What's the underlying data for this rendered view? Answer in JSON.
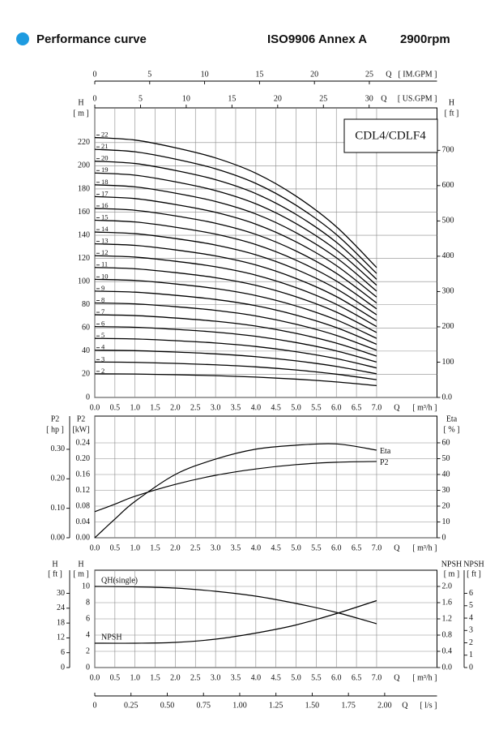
{
  "header": {
    "title": "Performance curve",
    "standard": "ISO9906 Annex A",
    "speed": "2900rpm"
  },
  "chart_data": [
    {
      "type": "line",
      "model": "CDL4/CDLF4",
      "color": "#000000",
      "grid": true,
      "x_label": "Q",
      "x_unit": "[ m³/h ]",
      "xlim": [
        0,
        8.5
      ],
      "xticks": [
        {
          "value": 0,
          "label": "0.0"
        },
        0.5,
        {
          "value": 1,
          "label": "1.0"
        },
        1.5,
        {
          "value": 2,
          "label": "2.0"
        },
        2.5,
        {
          "value": 3,
          "label": "3.0"
        },
        3.5,
        {
          "value": 4,
          "label": "4.0"
        },
        4.5,
        {
          "value": 5,
          "label": "5.0"
        },
        5.5,
        {
          "value": 6,
          "label": "6.0"
        },
        6.5,
        {
          "value": 7,
          "label": "7.0"
        }
      ],
      "x2_label": "Q",
      "x2_unit": "[ IM.GPM ]",
      "x2lim": [
        0,
        31.16
      ],
      "x2ticks": [
        0,
        5,
        10,
        15,
        20,
        25
      ],
      "x3_label": "Q",
      "x3_unit": "[ US.GPM ]",
      "x3lim": [
        0,
        37.42
      ],
      "x3ticks": [
        0,
        5,
        10,
        15,
        20,
        25,
        30
      ],
      "y_label": "H",
      "y_unit": "[ m ]",
      "ylim": [
        0,
        250
      ],
      "yticks": [
        0,
        20,
        40,
        60,
        80,
        100,
        120,
        140,
        160,
        180,
        200,
        220
      ],
      "y2_label": "H",
      "y2_unit": "[ ft ]",
      "y2lim": [
        0,
        820.2
      ],
      "y2ticks": [
        {
          "value": 0,
          "label": "0.0"
        },
        100,
        200,
        300,
        400,
        500,
        600,
        700
      ],
      "x": [
        0,
        1,
        2,
        3,
        4,
        5,
        6,
        7
      ],
      "series": [
        {
          "name": "2",
          "values": [
            20.4,
            20.2,
            19.6,
            18.8,
            17.6,
            15.8,
            13.4,
            10.2
          ]
        },
        {
          "name": "3",
          "values": [
            30.6,
            30.3,
            29.4,
            28.2,
            26.4,
            23.7,
            20.1,
            15.3
          ]
        },
        {
          "name": "4",
          "values": [
            40.8,
            40.4,
            39.2,
            37.6,
            35.2,
            31.6,
            26.8,
            20.4
          ]
        },
        {
          "name": "5",
          "values": [
            51,
            50.5,
            49,
            47,
            44,
            39.5,
            33.5,
            25.5
          ]
        },
        {
          "name": "6",
          "values": [
            61.2,
            60.6,
            58.8,
            56.4,
            52.8,
            47.4,
            40.2,
            30.6
          ]
        },
        {
          "name": "7",
          "values": [
            71.4,
            70.7,
            68.6,
            65.8,
            61.6,
            55.3,
            46.9,
            35.7
          ]
        },
        {
          "name": "8",
          "values": [
            81.6,
            80.8,
            78.4,
            75.2,
            70.4,
            63.2,
            53.6,
            40.8
          ]
        },
        {
          "name": "9",
          "values": [
            91.8,
            90.9,
            88.2,
            84.6,
            79.2,
            71.1,
            60.3,
            45.9
          ]
        },
        {
          "name": "10",
          "values": [
            102,
            101,
            98,
            94,
            88,
            79,
            67,
            51
          ]
        },
        {
          "name": "11",
          "values": [
            112.2,
            111.1,
            107.8,
            103.4,
            96.8,
            86.9,
            73.7,
            56.1
          ]
        },
        {
          "name": "12",
          "values": [
            122.4,
            121.2,
            117.6,
            112.8,
            105.6,
            94.8,
            80.4,
            61.2
          ]
        },
        {
          "name": "13",
          "values": [
            132.6,
            131.3,
            127.4,
            122.2,
            114.4,
            102.7,
            87.1,
            66.3
          ]
        },
        {
          "name": "14",
          "values": [
            142.8,
            141.4,
            137.2,
            131.6,
            123.2,
            110.6,
            93.8,
            71.4
          ]
        },
        {
          "name": "15",
          "values": [
            153,
            151.5,
            147,
            141,
            132,
            118.5,
            100.5,
            76.5
          ]
        },
        {
          "name": "16",
          "values": [
            163.2,
            161.6,
            156.8,
            150.4,
            140.8,
            126.4,
            107.2,
            81.6
          ]
        },
        {
          "name": "17",
          "values": [
            173.4,
            171.7,
            166.6,
            159.8,
            149.6,
            134.3,
            113.9,
            86.7
          ]
        },
        {
          "name": "18",
          "values": [
            183.6,
            181.8,
            176.4,
            169.2,
            158.4,
            142.2,
            120.6,
            91.8
          ]
        },
        {
          "name": "19",
          "values": [
            193.8,
            191.9,
            186.2,
            178.6,
            167.2,
            150.1,
            127.3,
            96.9
          ]
        },
        {
          "name": "20",
          "values": [
            204,
            202,
            196,
            188,
            176,
            158,
            134,
            102
          ]
        },
        {
          "name": "21",
          "values": [
            214.2,
            212.1,
            205.8,
            197.4,
            184.8,
            165.9,
            140.7,
            107.1
          ]
        },
        {
          "name": "22",
          "values": [
            224.4,
            222.2,
            215.6,
            206.8,
            193.6,
            173.8,
            147.4,
            112.2
          ]
        }
      ]
    },
    {
      "type": "line",
      "color": "#000000",
      "grid": true,
      "x_label": "Q",
      "x_unit": "[ m³/h ]",
      "xlim": [
        0,
        8.5
      ],
      "xticks": [
        {
          "value": 0,
          "label": "0.0"
        },
        0.5,
        {
          "value": 1,
          "label": "1.0"
        },
        1.5,
        {
          "value": 2,
          "label": "2.0"
        },
        2.5,
        {
          "value": 3,
          "label": "3.0"
        },
        3.5,
        {
          "value": 4,
          "label": "4.0"
        },
        4.5,
        {
          "value": 5,
          "label": "5.0"
        },
        5.5,
        {
          "value": 6,
          "label": "6.0"
        },
        6.5,
        {
          "value": 7,
          "label": "7.0"
        }
      ],
      "y_label": "P2",
      "y_unit": "[kW]",
      "ylim": [
        0,
        0.3077
      ],
      "yticks": [
        {
          "value": 0,
          "label": "0.00"
        },
        0.04,
        0.08,
        0.12,
        0.16,
        {
          "value": 0.2,
          "label": "0.20"
        },
        0.24
      ],
      "y3_label": "P2",
      "y3_unit": "[ hp ]",
      "y3lim": [
        0,
        0.4126
      ],
      "y3ticks": [
        {
          "value": 0,
          "label": "0.00"
        },
        {
          "value": 0.1,
          "label": "0.10"
        },
        {
          "value": 0.2,
          "label": "0.20"
        },
        {
          "value": 0.3,
          "label": "0.30"
        }
      ],
      "y2_label": "Eta",
      "y2_unit": "[ % ]",
      "y2lim": [
        0,
        76.9
      ],
      "y2ticks": [
        0,
        10,
        20,
        30,
        40,
        50,
        60
      ],
      "x": [
        0,
        0.5,
        1,
        2,
        3,
        4,
        5,
        6,
        7
      ],
      "series": [
        {
          "name": "Eta",
          "axis": "y2",
          "values": [
            0,
            11.8,
            23,
            40,
            49.7,
            56,
            58.5,
            59.3,
            55.4
          ]
        },
        {
          "name": "P2",
          "values": [
            0.066,
            0.085,
            0.105,
            0.135,
            0.158,
            0.174,
            0.185,
            0.191,
            0.193
          ]
        }
      ]
    },
    {
      "type": "line",
      "color": "#000000",
      "grid": true,
      "x_label": "Q",
      "x_unit": "[ m³/h ]",
      "xlim": [
        0,
        8.5
      ],
      "xticks": [
        {
          "value": 0,
          "label": "0.0"
        },
        0.5,
        {
          "value": 1,
          "label": "1.0"
        },
        1.5,
        {
          "value": 2,
          "label": "2.0"
        },
        2.5,
        {
          "value": 3,
          "label": "3.0"
        },
        3.5,
        {
          "value": 4,
          "label": "4.0"
        },
        4.5,
        {
          "value": 5,
          "label": "5.0"
        },
        5.5,
        {
          "value": 6,
          "label": "6.0"
        },
        6.5,
        {
          "value": 7,
          "label": "7.0"
        }
      ],
      "x2_label": "Q",
      "x2_unit": "[ l/s ]",
      "x2lim": [
        0,
        2.361
      ],
      "x2ticks": [
        0,
        0.25,
        {
          "value": 0.5,
          "label": "0.50"
        },
        0.75,
        {
          "value": 1,
          "label": "1.00"
        },
        1.25,
        {
          "value": 1.5,
          "label": "1.50"
        },
        1.75,
        {
          "value": 2,
          "label": "2.00"
        }
      ],
      "y_label": "H",
      "y_unit": "[ m ]",
      "ylim": [
        0,
        12
      ],
      "yticks": [
        0,
        2,
        4,
        6,
        8,
        10
      ],
      "y3_label": "H",
      "y3_unit": "[ ft ]",
      "y3lim": [
        0,
        39.37
      ],
      "y3ticks": [
        0,
        6,
        12,
        18,
        24,
        30
      ],
      "y2_label": "NPSH",
      "y2_unit": "[ m ]",
      "y2lim": [
        0,
        2.4
      ],
      "y2ticks": [
        {
          "value": 0,
          "label": "0.0"
        },
        0.4,
        0.8,
        1.2,
        1.6,
        {
          "value": 2,
          "label": "2.0"
        }
      ],
      "y4_label": "NPSH",
      "y4_unit": "[ ft ]",
      "y4lim": [
        0,
        7.874
      ],
      "y4ticks": [
        0,
        1,
        2,
        3,
        4,
        5,
        6
      ],
      "x": [
        0,
        1,
        2,
        3,
        4,
        5,
        6,
        7
      ],
      "series": [
        {
          "name": "QH(single)",
          "values": [
            10,
            9.95,
            9.8,
            9.4,
            8.8,
            7.9,
            6.8,
            5.4
          ]
        },
        {
          "name": "NPSH",
          "axis": "y2",
          "values": [
            0.6,
            0.6,
            0.62,
            0.7,
            0.85,
            1.05,
            1.33,
            1.65
          ]
        }
      ]
    }
  ]
}
